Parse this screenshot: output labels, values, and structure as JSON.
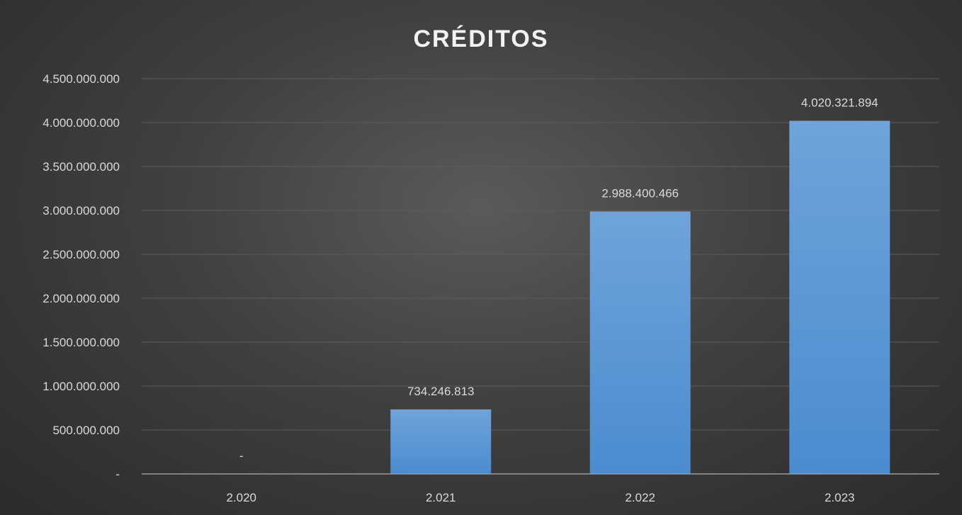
{
  "chart_data": {
    "type": "bar",
    "title": "CRÉDITOS",
    "categories": [
      "2.020",
      "2.021",
      "2.022",
      "2.023"
    ],
    "values": [
      0,
      734246813,
      2988400466,
      4020321894
    ],
    "data_labels": [
      "-",
      "734.246.813",
      "2.988.400.466",
      "4.020.321.894"
    ],
    "ylim": [
      0,
      4500000000
    ],
    "yticks": [
      0,
      500000000,
      1000000000,
      1500000000,
      2000000000,
      2500000000,
      3000000000,
      3500000000,
      4000000000,
      4500000000
    ],
    "ytick_labels": [
      "-",
      "500.000.000",
      "1.000.000.000",
      "1.500.000.000",
      "2.000.000.000",
      "2.500.000.000",
      "3.000.000.000",
      "3.500.000.000",
      "4.000.000.000",
      "4.500.000.000"
    ],
    "xlabel": "",
    "ylabel": "",
    "grid": true,
    "legend": "none",
    "colors": {
      "bar_top": "#6fa3da",
      "bar_bottom": "#4a8ccf",
      "background_center": "#5a5a5a",
      "background_edge": "#2b2b2b",
      "gridline": "#5c5c5c",
      "text": "#d9d9d9"
    }
  }
}
